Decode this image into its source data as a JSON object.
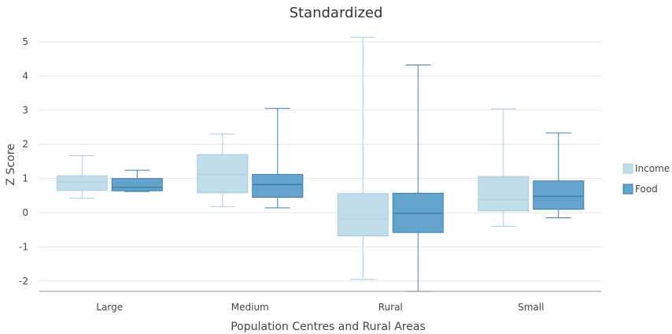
{
  "chart_data": {
    "type": "boxplot",
    "title": "Standardized",
    "xlabel": "Population Centres and Rural Areas",
    "ylabel": "Z Score",
    "ylim": [
      -2.3,
      5.3
    ],
    "yticks": [
      -2,
      -1,
      0,
      1,
      2,
      3,
      4,
      5
    ],
    "categories": [
      "Large",
      "Medium",
      "Rural",
      "Small"
    ],
    "legend_position": "right",
    "series": [
      {
        "name": "Income",
        "fill": "#c1ddea",
        "stroke": "#a9cde0",
        "median_color": "#a9cde0",
        "boxes": [
          {
            "min": 0.42,
            "q1": 0.65,
            "median": 0.9,
            "q3": 1.08,
            "max": 1.67
          },
          {
            "min": 0.18,
            "q1": 0.58,
            "median": 1.12,
            "q3": 1.7,
            "max": 2.3
          },
          {
            "min": -1.95,
            "q1": -0.68,
            "median": -0.18,
            "q3": 0.56,
            "max": 5.13
          },
          {
            "min": -0.4,
            "q1": 0.05,
            "median": 0.38,
            "q3": 1.06,
            "max": 3.04
          }
        ]
      },
      {
        "name": "Food",
        "fill": "#64a3cc",
        "stroke": "#3a7fb0",
        "median_color": "#2e6f9e",
        "boxes": [
          {
            "min": 0.62,
            "q1": 0.64,
            "median": 0.74,
            "q3": 1.0,
            "max": 1.24
          },
          {
            "min": 0.14,
            "q1": 0.45,
            "median": 0.82,
            "q3": 1.12,
            "max": 3.05
          },
          {
            "min": -2.3,
            "q1": -0.58,
            "median": -0.02,
            "q3": 0.57,
            "max": 4.32
          },
          {
            "min": -0.15,
            "q1": 0.1,
            "median": 0.48,
            "q3": 0.93,
            "max": 2.33
          }
        ]
      }
    ]
  }
}
